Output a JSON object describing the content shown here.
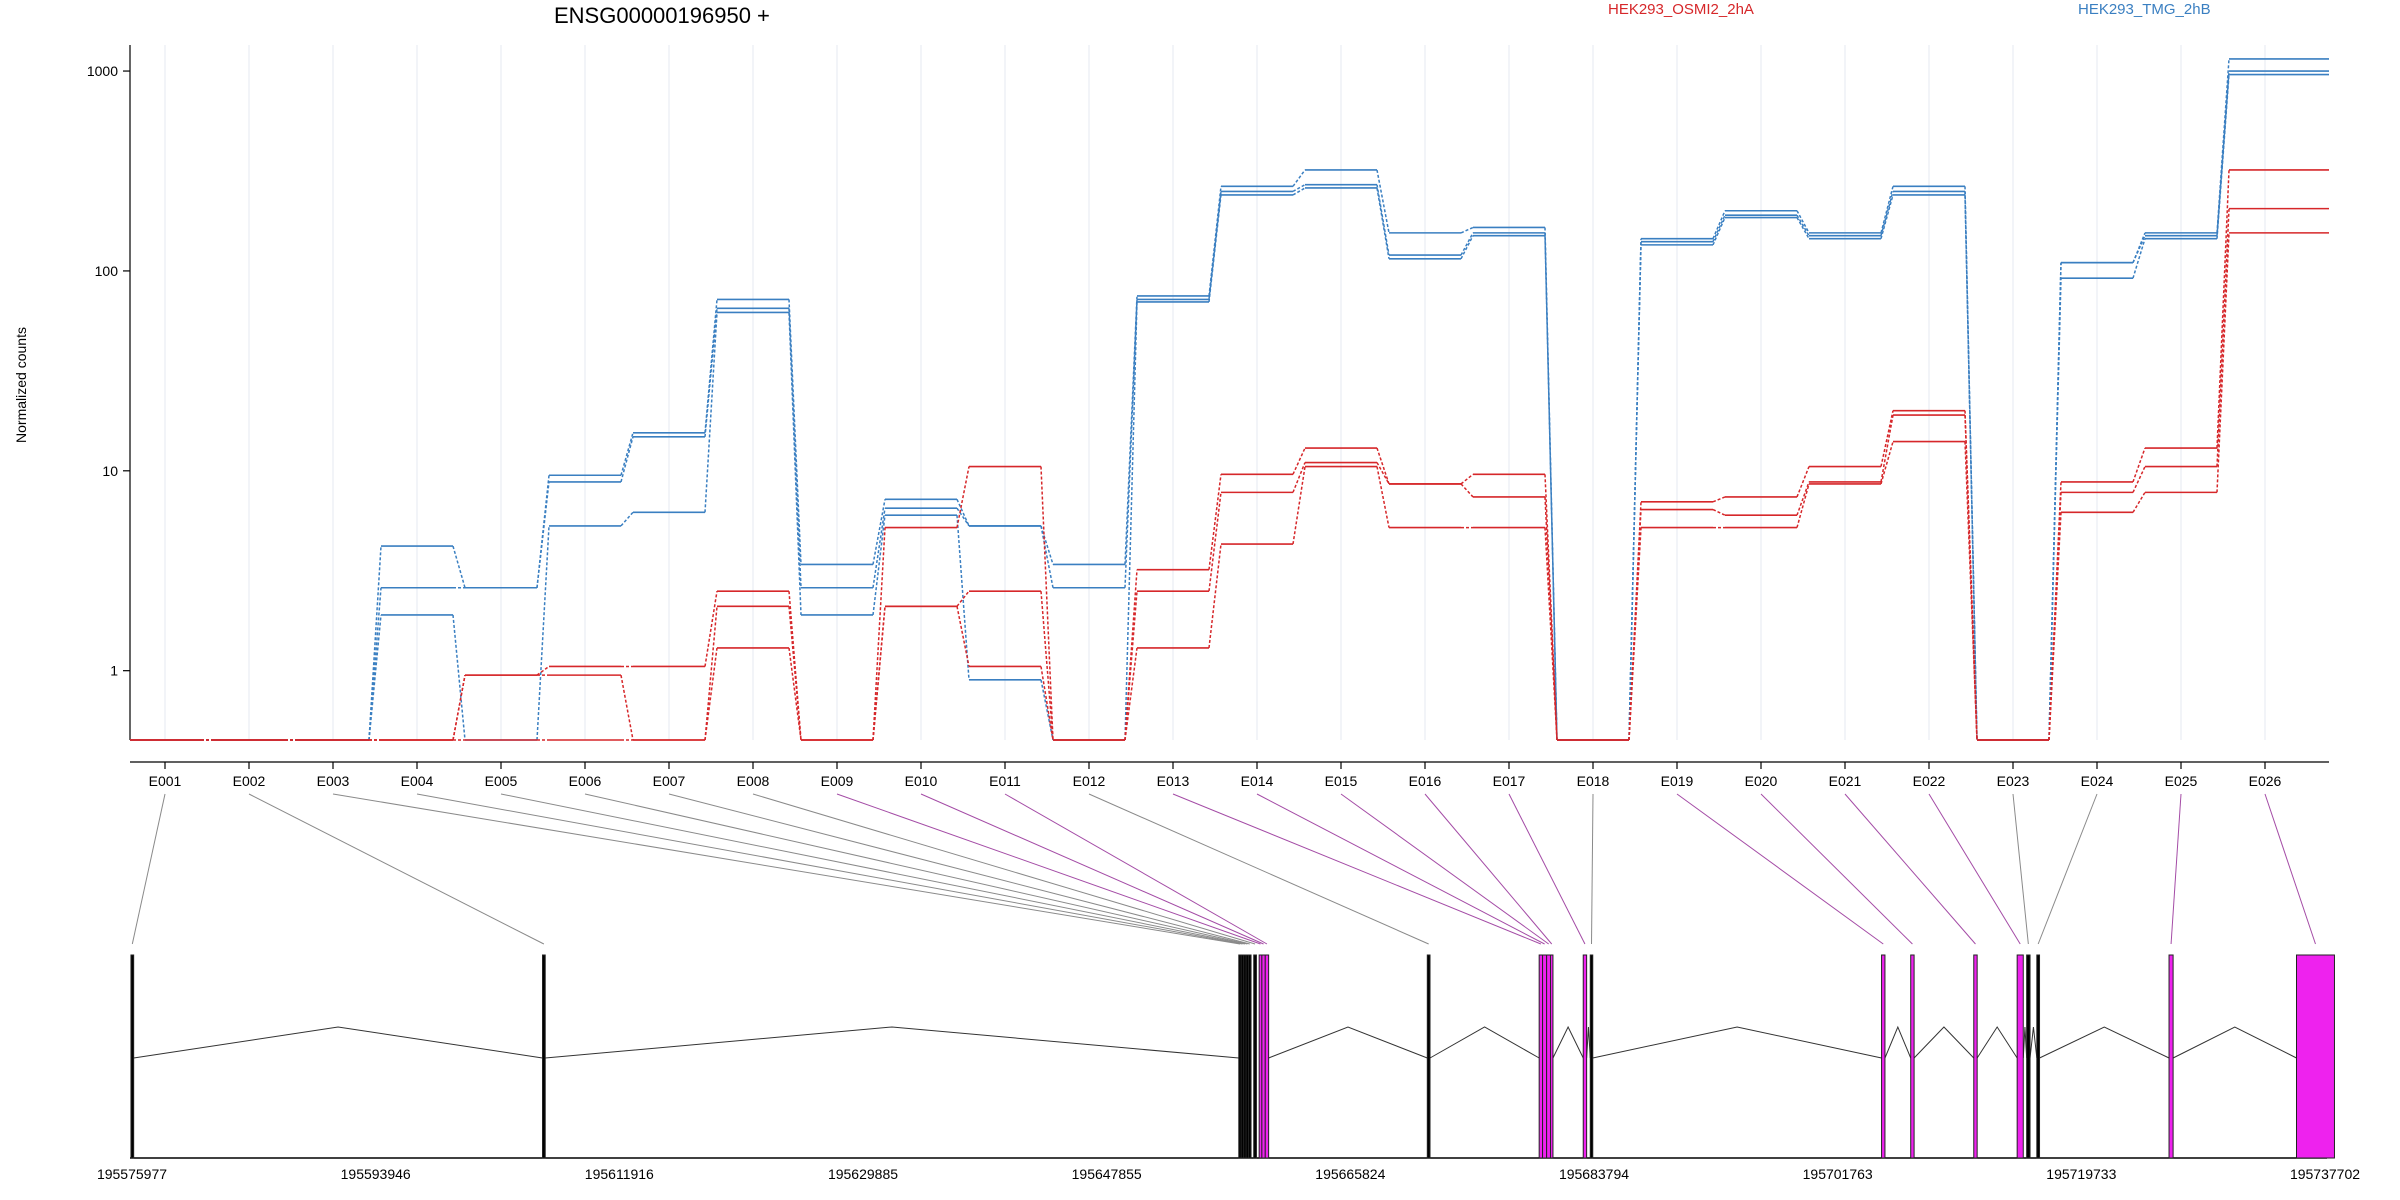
{
  "chart_data": {
    "type": "line",
    "title": "ENSG00000196950 +",
    "ylabel": "Normalized counts",
    "xlabel": "",
    "y_scale": "log",
    "y_ticks": [
      1,
      10,
      100,
      1000
    ],
    "y_tick_labels": [
      "1",
      "10",
      "100",
      "1000"
    ],
    "ylim": [
      0.45,
      1350
    ],
    "grid": "vertical",
    "legend_placement": "top",
    "categories": [
      "E001",
      "E002",
      "E003",
      "E004",
      "E005",
      "E006",
      "E007",
      "E008",
      "E009",
      "E010",
      "E011",
      "E012",
      "E013",
      "E014",
      "E015",
      "E016",
      "E017",
      "E018",
      "E019",
      "E020",
      "E021",
      "E022",
      "E023",
      "E024",
      "E025",
      "E026"
    ],
    "series": [
      {
        "group": "HEK293_TMG_2hB",
        "color": "#3a7fc1",
        "values": [
          0.45,
          0.45,
          0.45,
          4.2,
          2.6,
          9.5,
          15.5,
          72,
          3.4,
          7.2,
          5.3,
          3.4,
          75,
          265,
          320,
          155,
          165,
          0.45,
          145,
          200,
          155,
          265,
          0.45,
          110,
          155,
          1150
        ]
      },
      {
        "group": "HEK293_TMG_2hB",
        "color": "#3a7fc1",
        "values": [
          0.45,
          0.45,
          0.45,
          2.6,
          2.6,
          8.8,
          14.8,
          65,
          2.6,
          6.5,
          5.3,
          2.6,
          72,
          250,
          270,
          120,
          155,
          0.45,
          140,
          190,
          150,
          250,
          0.45,
          110,
          150,
          1000
        ]
      },
      {
        "group": "HEK293_TMG_2hB",
        "color": "#3a7fc1",
        "values": [
          0.45,
          0.45,
          0.45,
          1.9,
          0.45,
          5.3,
          6.2,
          62,
          1.9,
          6.0,
          0.9,
          0.45,
          70,
          240,
          260,
          115,
          150,
          0.45,
          135,
          185,
          145,
          240,
          0.45,
          92,
          145,
          960
        ]
      },
      {
        "group": "HEK293_OSMI2_2hA",
        "color": "#d6272a",
        "values": [
          0.45,
          0.45,
          0.45,
          0.45,
          0.95,
          1.05,
          1.05,
          2.5,
          0.45,
          5.2,
          10.5,
          0.45,
          3.2,
          9.6,
          13,
          8.6,
          9.6,
          0.45,
          7.0,
          7.4,
          10.5,
          20,
          0.45,
          8.8,
          13,
          320
        ]
      },
      {
        "group": "HEK293_OSMI2_2hA",
        "color": "#d6272a",
        "values": [
          0.45,
          0.45,
          0.45,
          0.45,
          0.95,
          0.95,
          0.45,
          2.1,
          0.45,
          2.1,
          2.5,
          0.45,
          2.5,
          7.8,
          11,
          8.6,
          7.4,
          0.45,
          6.4,
          6.0,
          8.8,
          19,
          0.45,
          7.8,
          10.5,
          205
        ]
      },
      {
        "group": "HEK293_OSMI2_2hA",
        "color": "#d6272a",
        "values": [
          0.45,
          0.45,
          0.45,
          0.45,
          0.45,
          0.45,
          0.45,
          1.3,
          0.45,
          2.1,
          1.05,
          0.45,
          1.3,
          4.3,
          10.5,
          5.2,
          5.2,
          0.45,
          5.2,
          5.2,
          8.6,
          14,
          0.45,
          6.2,
          7.8,
          155
        ]
      }
    ],
    "legend": [
      {
        "name": "HEK293_OSMI2_2hA",
        "color": "#d6272a"
      },
      {
        "name": "HEK293_TMG_2hB",
        "color": "#3a7fc1"
      }
    ],
    "genomic_axis": {
      "tick_labels": [
        "195575977",
        "195593946",
        "195611916",
        "195629885",
        "195647855",
        "195665824",
        "195683794",
        "195701763",
        "195719733",
        "195737702"
      ],
      "start": 195575977,
      "end": 195737702,
      "exons": [
        {
          "id": "E001",
          "start": 195575900,
          "end": 195576100,
          "color": "#000000"
        },
        {
          "id": "E002",
          "start": 195606250,
          "end": 195606450,
          "color": "#000000"
        },
        {
          "id": "E003",
          "start": 195657600,
          "end": 195657780,
          "color": "#000000"
        },
        {
          "id": "E004",
          "start": 195657780,
          "end": 195657960,
          "color": "#000000"
        },
        {
          "id": "E005",
          "start": 195657960,
          "end": 195658140,
          "color": "#000000"
        },
        {
          "id": "E006",
          "start": 195658140,
          "end": 195658320,
          "color": "#000000"
        },
        {
          "id": "E007",
          "start": 195658320,
          "end": 195658500,
          "color": "#000000"
        },
        {
          "id": "E008",
          "start": 195658700,
          "end": 195658900,
          "color": "#000000"
        },
        {
          "id": "E009",
          "start": 195659100,
          "end": 195659300,
          "color": "#ee22ee"
        },
        {
          "id": "E010",
          "start": 195659300,
          "end": 195659550,
          "color": "#ee22ee"
        },
        {
          "id": "E011",
          "start": 195659550,
          "end": 195659800,
          "color": "#ee22ee"
        },
        {
          "id": "E012",
          "start": 195671500,
          "end": 195671700,
          "color": "#000000"
        },
        {
          "id": "E013",
          "start": 195679750,
          "end": 195680000,
          "color": "#ee22ee"
        },
        {
          "id": "E014",
          "start": 195680000,
          "end": 195680300,
          "color": "#ee22ee"
        },
        {
          "id": "E015",
          "start": 195680300,
          "end": 195680600,
          "color": "#ee22ee"
        },
        {
          "id": "E016",
          "start": 195680600,
          "end": 195680750,
          "color": "#ee22ee"
        },
        {
          "id": "E017",
          "start": 195683000,
          "end": 195683250,
          "color": "#ee22ee"
        },
        {
          "id": "E018",
          "start": 195683520,
          "end": 195683700,
          "color": "#000000"
        },
        {
          "id": "E019",
          "start": 195705000,
          "end": 195705250,
          "color": "#ee22ee"
        },
        {
          "id": "E020",
          "start": 195707150,
          "end": 195707400,
          "color": "#ee22ee"
        },
        {
          "id": "E021",
          "start": 195711800,
          "end": 195712050,
          "color": "#ee22ee"
        },
        {
          "id": "E022",
          "start": 195715000,
          "end": 195715450,
          "color": "#ee22ee"
        },
        {
          "id": "E023",
          "start": 195715700,
          "end": 195715950,
          "color": "#000000"
        },
        {
          "id": "E024",
          "start": 195716450,
          "end": 195716650,
          "color": "#000000"
        },
        {
          "id": "E025",
          "start": 195726200,
          "end": 195726500,
          "color": "#ee22ee"
        },
        {
          "id": "E026",
          "start": 195735600,
          "end": 195738400,
          "color": "#ee22ee"
        }
      ]
    }
  }
}
